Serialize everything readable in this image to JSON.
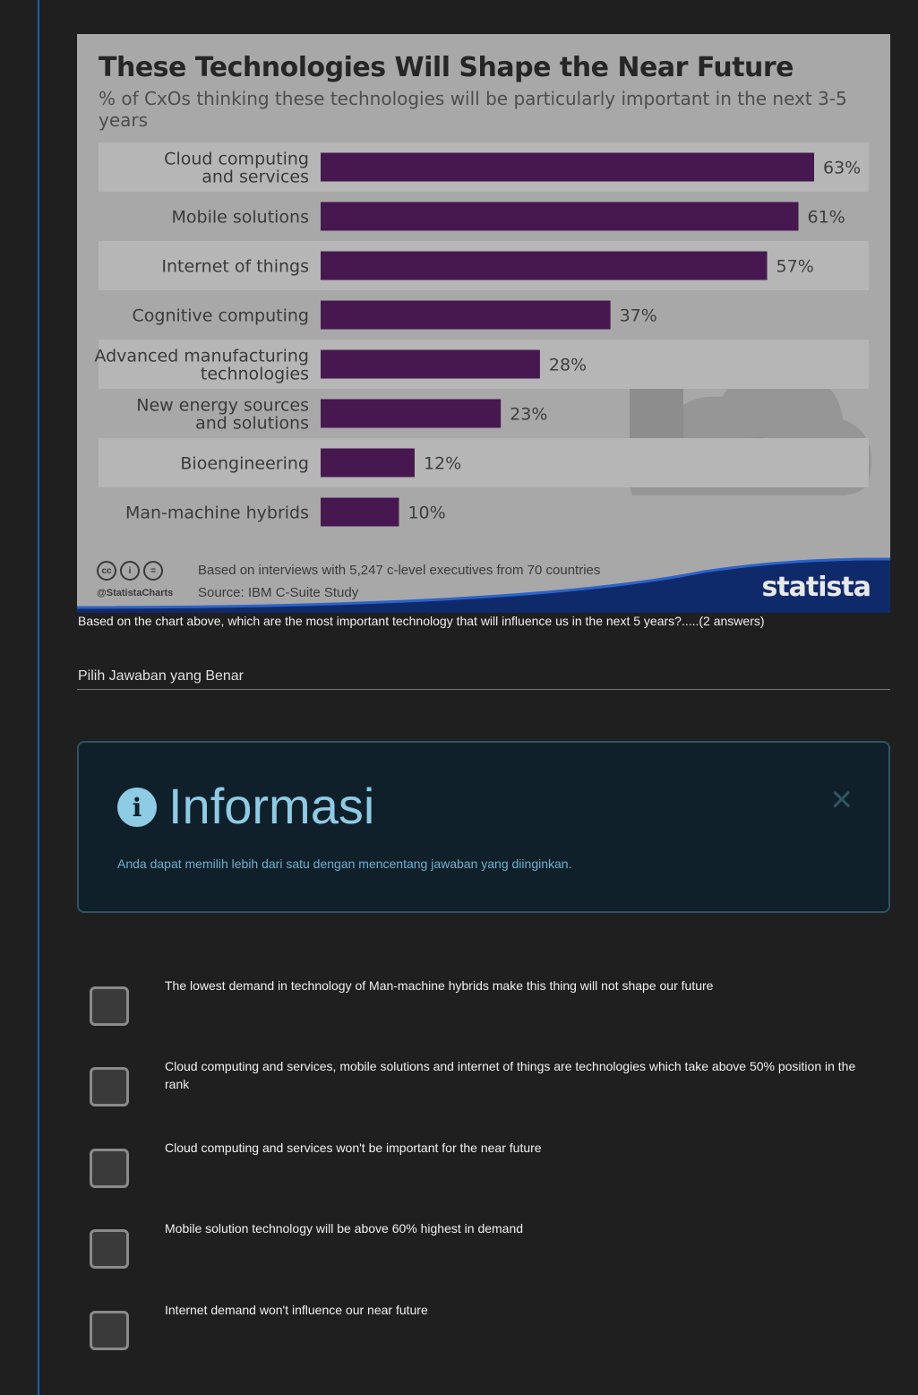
{
  "chart_data": {
    "type": "bar",
    "orientation": "horizontal",
    "title": "These Technologies Will Shape the Near Future",
    "subtitle": "% of CxOs thinking these technologies will be particularly important in the next 3-5 years",
    "categories": [
      [
        "Cloud computing",
        "and services"
      ],
      [
        "Mobile solutions"
      ],
      [
        "Internet of things"
      ],
      [
        "Cognitive computing"
      ],
      [
        "Advanced manufacturing",
        "technologies"
      ],
      [
        "New energy sources",
        "and solutions"
      ],
      [
        "Bioengineering"
      ],
      [
        "Man-machine hybrids"
      ]
    ],
    "values": [
      63,
      61,
      57,
      37,
      28,
      23,
      12,
      10
    ],
    "value_labels": [
      "63%",
      "61%",
      "57%",
      "37%",
      "28%",
      "23%",
      "12%",
      "10%"
    ],
    "unit": "%",
    "xlim": [
      0,
      63
    ],
    "bar_color": "#46184f",
    "grid": false,
    "note": "Based on interviews with 5,247 c-level executives from 70 countries",
    "source": "Source: IBM C-Suite Study",
    "handle": "@StatistaCharts",
    "brand": "statista"
  },
  "question": {
    "text": "Based on the chart above, which are the most important technology that will influence us in the next 5 years?.....(2 answers)",
    "choose_label": "Pilih Jawaban yang Benar"
  },
  "info": {
    "title": "Informasi",
    "icon": "info-circle-icon",
    "text": "Anda dapat memilih lebih dari satu dengan mencentang jawaban yang diinginkan.",
    "close_icon": "close-icon",
    "close_glyph": "×"
  },
  "options": [
    {
      "text": "The lowest demand in technology of Man-machine hybrids make this thing will not shape our future",
      "checked": false
    },
    {
      "text": "Cloud computing and services, mobile solutions and internet of things are technologies which take above 50% position in the rank",
      "checked": false
    },
    {
      "text": "Cloud computing and services won't be important for the near future",
      "checked": false
    },
    {
      "text": "Mobile solution technology will be above 60% highest in demand",
      "checked": false
    },
    {
      "text": "Internet demand won't influence our near future",
      "checked": false
    }
  ],
  "colors": {
    "background": "#1f1f1f",
    "accent_rule": "#1f5ea8",
    "info_bg": "#10202a",
    "info_text": "#8ecbe4"
  }
}
